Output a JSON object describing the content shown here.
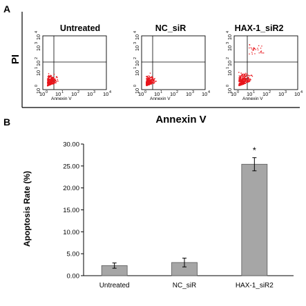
{
  "panels": {
    "a_label": "A",
    "b_label": "B"
  },
  "flow": {
    "y_axis_label": "PI",
    "x_axis_label": "Annexin V",
    "plot_x_label": "Annexin V",
    "tick_labels": [
      "10",
      "10",
      "10",
      "10",
      "10"
    ],
    "tick_exponents": [
      "0",
      "1",
      "2",
      "3",
      "4"
    ],
    "dot_color": "#e8141b",
    "plots": [
      {
        "title": "Untreated"
      },
      {
        "title": "NC_siR"
      },
      {
        "title": "HAX-1_siR2"
      }
    ]
  },
  "chart_data": {
    "type": "bar",
    "categories": [
      "Untreated",
      "NC_siR",
      "HAX-1_siR2"
    ],
    "values": [
      2.3,
      3.0,
      25.4
    ],
    "errors": [
      0.6,
      1.0,
      1.5
    ],
    "ylabel": "Apoptosis Rate (%)",
    "xlabel": "",
    "ylim": [
      0,
      30
    ],
    "yticks": [
      "0.00",
      "5.00",
      "10.00",
      "15.00",
      "20.00",
      "25.00",
      "30.00"
    ],
    "annotations": [
      {
        "category": "HAX-1_siR2",
        "text": "*"
      }
    ],
    "bar_color": "#a6a6a6",
    "grid": false
  }
}
